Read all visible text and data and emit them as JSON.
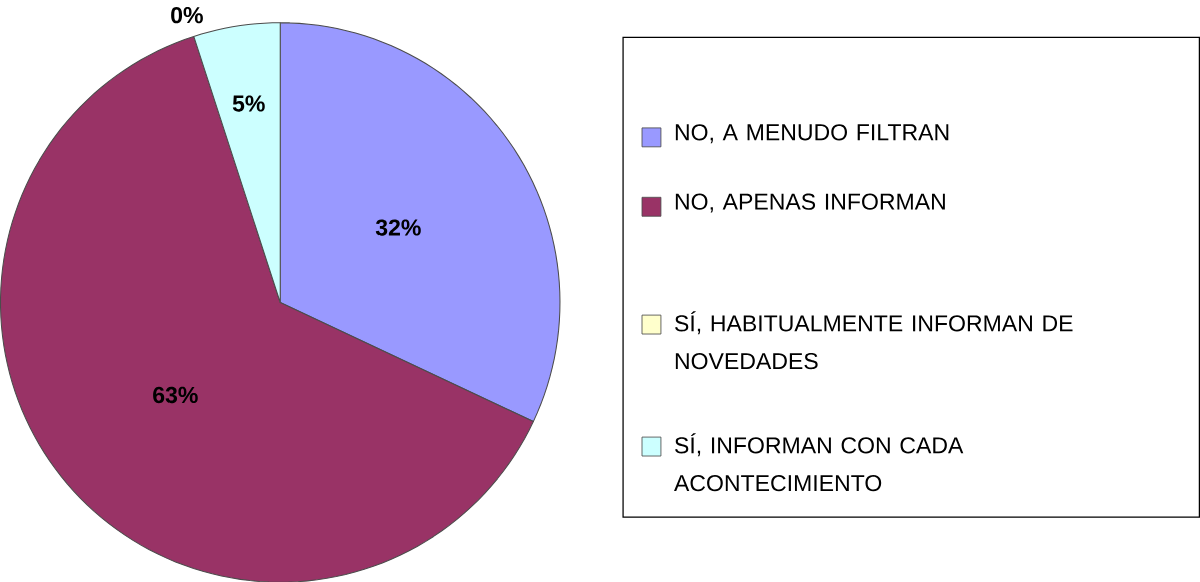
{
  "chart_data": {
    "type": "pie",
    "categories": [
      "NO, A MENUDO FILTRAN",
      "NO, APENAS INFORMAN",
      "SÍ, HABITUALMENTE INFORMAN DE NOVEDADES",
      "SÍ, INFORMAN CON CADA ACONTECIMIENTO"
    ],
    "values": [
      32,
      63,
      0,
      5
    ],
    "colors": [
      "#9999ff",
      "#993366",
      "#ffffcc",
      "#ccffff"
    ],
    "value_labels": [
      "32%",
      "63%",
      "0%",
      "5%"
    ],
    "legend": "right"
  }
}
